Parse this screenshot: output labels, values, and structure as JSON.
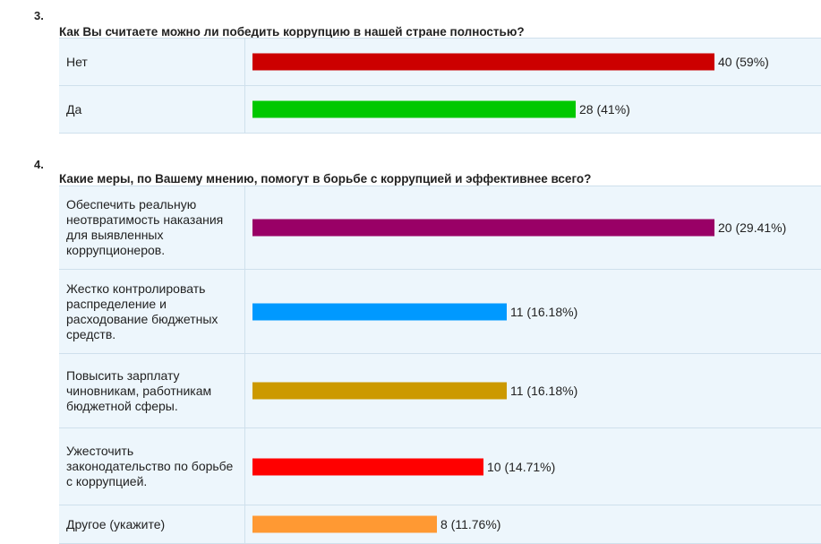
{
  "chart_data": [
    {
      "type": "bar",
      "orientation": "horizontal",
      "number": "3.",
      "title": "Как Вы считаете можно ли победить коррупцию в нашей стране полностью?",
      "categories": [
        "Нет",
        "Да"
      ],
      "values": [
        40,
        28
      ],
      "value_labels": [
        "40 (59%)",
        "28 (41%)"
      ],
      "colors": [
        "#cc0000",
        "#00c800"
      ]
    },
    {
      "type": "bar",
      "orientation": "horizontal",
      "number": "4.",
      "title": "Какие меры, по Вашему мнению, помогут в борьбе с коррупцией и эффективнее всего?",
      "categories": [
        "Обеспечить реальную неотвратимость наказания для выявленных коррупционеров.",
        "Жестко контролировать распределение и расходование бюджетных средств.",
        "Повысить зарплату чиновникам, работникам бюджетной сферы.",
        "Ужесточить законодательство по борьбе с коррупцией.",
        "Другое (укажите)"
      ],
      "values": [
        20,
        11,
        11,
        10,
        8
      ],
      "value_labels": [
        "20 (29.41%)",
        "11 (16.18%)",
        "11 (16.18%)",
        "10 (14.71%)",
        "8 (11.76%)"
      ],
      "colors": [
        "#990066",
        "#0099ff",
        "#cc9900",
        "#ff0000",
        "#ff9933"
      ]
    }
  ]
}
